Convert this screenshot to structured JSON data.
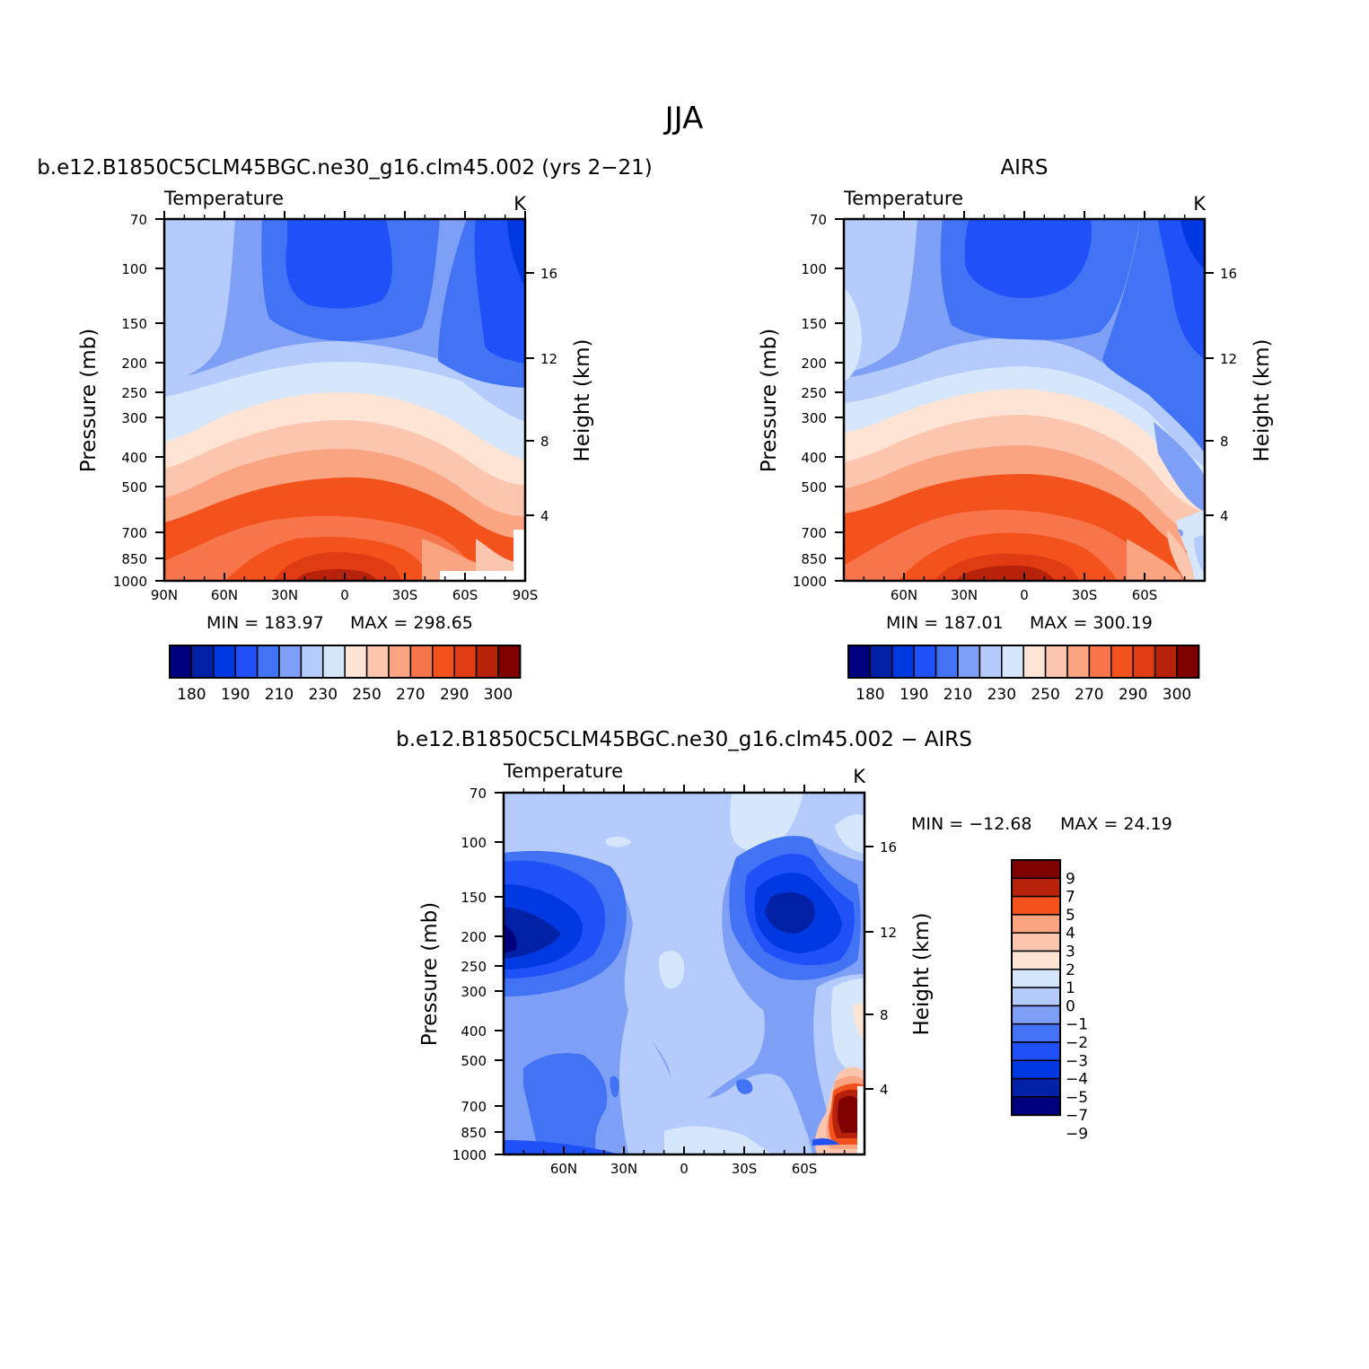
{
  "figure": {
    "title": "JJA"
  },
  "palette": {
    "levels_abs": [
      "#00007f",
      "#0021a6",
      "#0039e1",
      "#1f50f8",
      "#4273f5",
      "#7d9ff6",
      "#b4cbfb",
      "#d6e7fc",
      "#fde4d4",
      "#fcc6ae",
      "#fba482",
      "#f8754b",
      "#f3521d",
      "#e03b12",
      "#b8220b",
      "#7f0000"
    ],
    "levels_diff": [
      "#00007f",
      "#0021a6",
      "#0039e1",
      "#1f50f8",
      "#4273f5",
      "#7d9ff6",
      "#b4cbfb",
      "#d6e7fc",
      "#fde4d4",
      "#fcc6ae",
      "#fba482",
      "#f3521d",
      "#b8220b",
      "#7f0000"
    ]
  },
  "chart_data": [
    {
      "type": "heatmap",
      "title": "b.e12.B1850C5CLM45BGC.ne30_g16.clm45.002 (yrs 2−21)",
      "variable": "Temperature",
      "units": "K",
      "ylabel": "Pressure (mb)",
      "y2label": "Height (km)",
      "x_ticks": [
        "90N",
        "60N",
        "30N",
        "0",
        "30S",
        "60S",
        "90S"
      ],
      "y_ticks": [
        "70",
        "100",
        "150",
        "200",
        "250",
        "300",
        "400",
        "500",
        "700",
        "850",
        "1000"
      ],
      "y2_ticks": [
        "16",
        "12",
        "8",
        "4"
      ],
      "min_label": "MIN = 183.97",
      "max_label": "MAX = 298.65",
      "colorbar_labels": [
        "180",
        "190",
        "210",
        "230",
        "250",
        "270",
        "290",
        "300"
      ]
    },
    {
      "type": "heatmap",
      "title": "AIRS",
      "variable": "Temperature",
      "units": "K",
      "ylabel": "Pressure (mb)",
      "y2label": "Height (km)",
      "x_ticks": [
        "60N",
        "30N",
        "0",
        "30S",
        "60S"
      ],
      "y_ticks": [
        "70",
        "100",
        "150",
        "200",
        "250",
        "300",
        "400",
        "500",
        "700",
        "850",
        "1000"
      ],
      "y2_ticks": [
        "16",
        "12",
        "8",
        "4"
      ],
      "min_label": "MIN = 187.01",
      "max_label": "MAX = 300.19",
      "colorbar_labels": [
        "180",
        "190",
        "210",
        "230",
        "250",
        "270",
        "290",
        "300"
      ]
    },
    {
      "type": "heatmap",
      "title": "b.e12.B1850C5CLM45BGC.ne30_g16.clm45.002 − AIRS",
      "variable": "Temperature",
      "units": "K",
      "ylabel": "Pressure (mb)",
      "y2label": "Height (km)",
      "x_ticks": [
        "60N",
        "30N",
        "0",
        "30S",
        "60S"
      ],
      "y_ticks": [
        "70",
        "100",
        "150",
        "200",
        "250",
        "300",
        "400",
        "500",
        "700",
        "850",
        "1000"
      ],
      "y2_ticks": [
        "16",
        "12",
        "8",
        "4"
      ],
      "min_label": "MIN = −12.68",
      "max_label": "MAX =   24.19",
      "colorbar_labels": [
        "9",
        "7",
        "5",
        "4",
        "3",
        "2",
        "1",
        "0",
        "−1",
        "−2",
        "−3",
        "−4",
        "−5",
        "−7",
        "−9"
      ]
    }
  ]
}
